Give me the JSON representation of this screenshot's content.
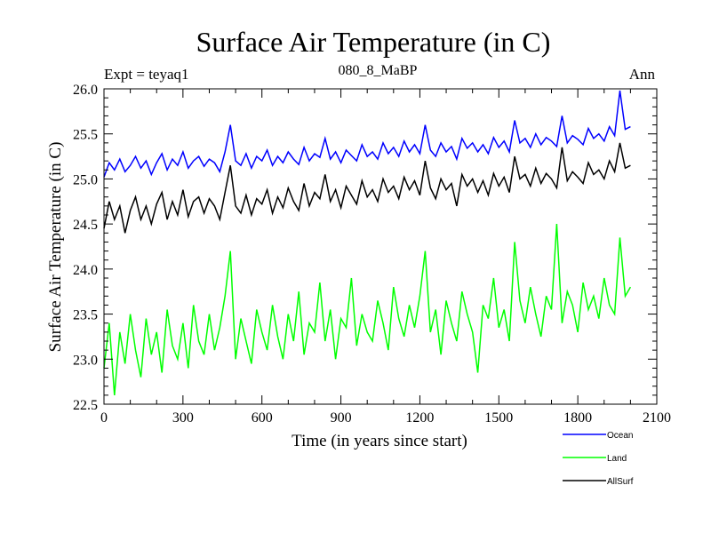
{
  "chart_data": {
    "type": "line",
    "title": "Surface Air Temperature (in C)",
    "subtitle_left": "Expt = teyaq1",
    "subtitle_center": "080_8_MaBP",
    "subtitle_right": "Ann",
    "xlabel": "Time (in years since start)",
    "ylabel": "Surface Air Temperature (in C)",
    "xlim": [
      0,
      2100
    ],
    "ylim": [
      22.5,
      26.0
    ],
    "xticks": [
      0,
      300,
      600,
      900,
      1200,
      1500,
      1800,
      2100
    ],
    "xtick_labels": [
      "0",
      "300",
      "600",
      "900",
      "1200",
      "1500",
      "1800",
      "2100"
    ],
    "yticks": [
      22.5,
      23.0,
      23.5,
      24.0,
      24.5,
      25.0,
      25.5,
      26.0
    ],
    "ytick_labels": [
      "22.5",
      "23.0",
      "23.5",
      "24.0",
      "24.5",
      "25.0",
      "25.5",
      "26.0"
    ],
    "x_range_of_series": [
      0,
      2000
    ],
    "legend_position": "bottom-right, below plot",
    "series": [
      {
        "name": "Ocean",
        "color": "#0000ff",
        "values": [
          25.02,
          25.18,
          25.1,
          25.22,
          25.08,
          25.15,
          25.25,
          25.12,
          25.2,
          25.05,
          25.18,
          25.28,
          25.1,
          25.22,
          25.15,
          25.3,
          25.12,
          25.2,
          25.25,
          25.14,
          25.22,
          25.18,
          25.08,
          25.3,
          25.6,
          25.2,
          25.15,
          25.28,
          25.12,
          25.25,
          25.2,
          25.32,
          25.15,
          25.25,
          25.18,
          25.3,
          25.22,
          25.16,
          25.35,
          25.2,
          25.28,
          25.24,
          25.45,
          25.22,
          25.3,
          25.18,
          25.32,
          25.26,
          25.2,
          25.38,
          25.25,
          25.3,
          25.22,
          25.4,
          25.28,
          25.35,
          25.25,
          25.42,
          25.3,
          25.38,
          25.28,
          25.6,
          25.32,
          25.25,
          25.4,
          25.3,
          25.36,
          25.22,
          25.45,
          25.34,
          25.4,
          25.3,
          25.38,
          25.28,
          25.46,
          25.35,
          25.42,
          25.3,
          25.65,
          25.4,
          25.45,
          25.35,
          25.5,
          25.38,
          25.46,
          25.42,
          25.36,
          25.7,
          25.4,
          25.48,
          25.44,
          25.38,
          25.56,
          25.45,
          25.5,
          25.42,
          25.58,
          25.48,
          25.98,
          25.55,
          25.58
        ]
      },
      {
        "name": "Land",
        "color": "#00ff00",
        "values": [
          22.9,
          23.4,
          22.6,
          23.3,
          22.95,
          23.5,
          23.1,
          22.8,
          23.45,
          23.05,
          23.3,
          22.85,
          23.55,
          23.15,
          23.0,
          23.4,
          22.9,
          23.6,
          23.2,
          23.05,
          23.5,
          23.1,
          23.35,
          23.7,
          24.2,
          23.0,
          23.45,
          23.2,
          22.95,
          23.55,
          23.3,
          23.1,
          23.6,
          23.25,
          23.0,
          23.5,
          23.2,
          23.75,
          23.05,
          23.4,
          23.3,
          23.85,
          23.2,
          23.55,
          23.0,
          23.45,
          23.35,
          23.9,
          23.15,
          23.5,
          23.3,
          23.2,
          23.65,
          23.4,
          23.1,
          23.8,
          23.45,
          23.25,
          23.6,
          23.35,
          23.7,
          24.2,
          23.3,
          23.55,
          23.05,
          23.65,
          23.4,
          23.2,
          23.75,
          23.5,
          23.3,
          22.85,
          23.6,
          23.45,
          23.9,
          23.35,
          23.55,
          23.2,
          24.3,
          23.65,
          23.4,
          23.8,
          23.5,
          23.25,
          23.7,
          23.55,
          24.5,
          23.4,
          23.75,
          23.6,
          23.3,
          23.85,
          23.55,
          23.7,
          23.45,
          23.9,
          23.6,
          23.5,
          24.35,
          23.7,
          23.8
        ]
      },
      {
        "name": "AllSurf",
        "color": "#000000",
        "values": [
          24.45,
          24.75,
          24.55,
          24.7,
          24.4,
          24.65,
          24.8,
          24.55,
          24.7,
          24.5,
          24.72,
          24.85,
          24.55,
          24.75,
          24.6,
          24.88,
          24.58,
          24.75,
          24.8,
          24.62,
          24.78,
          24.7,
          24.55,
          24.85,
          25.15,
          24.7,
          24.62,
          24.82,
          24.6,
          24.78,
          24.72,
          24.88,
          24.62,
          24.8,
          24.68,
          24.9,
          24.75,
          24.65,
          24.95,
          24.7,
          24.85,
          24.78,
          25.05,
          24.75,
          24.88,
          24.68,
          24.92,
          24.82,
          24.72,
          24.98,
          24.8,
          24.88,
          24.75,
          25.0,
          24.85,
          24.92,
          24.78,
          25.02,
          24.88,
          24.98,
          24.82,
          25.2,
          24.9,
          24.78,
          25.0,
          24.88,
          24.95,
          24.7,
          25.05,
          24.92,
          25.0,
          24.85,
          24.98,
          24.82,
          25.06,
          24.92,
          25.02,
          24.85,
          25.25,
          25.0,
          25.05,
          24.92,
          25.12,
          24.95,
          25.06,
          25.0,
          24.9,
          25.35,
          24.98,
          25.08,
          25.02,
          24.95,
          25.18,
          25.05,
          25.1,
          25.0,
          25.2,
          25.08,
          25.4,
          25.12,
          25.15
        ]
      }
    ]
  }
}
